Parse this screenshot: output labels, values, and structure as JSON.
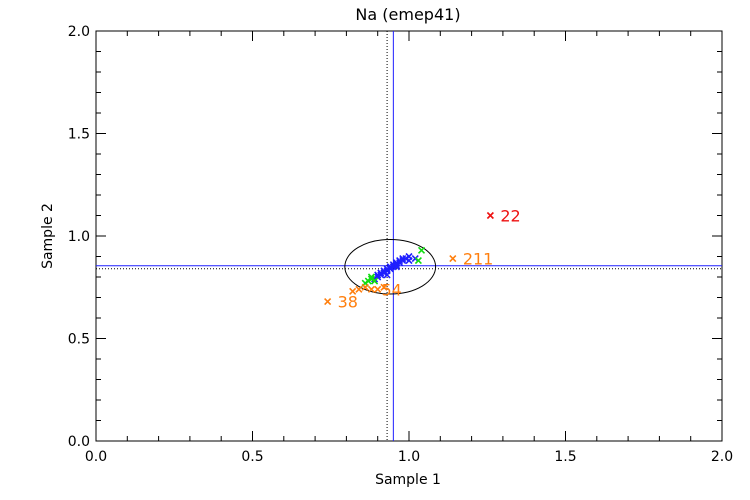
{
  "chart_data": {
    "type": "scatter",
    "title": "Na (emep41)",
    "xlabel": "Sample 1",
    "ylabel": "Sample 2",
    "xlim": [
      0.0,
      2.0
    ],
    "ylim": [
      0.0,
      2.0
    ],
    "x_ticks": [
      "0.0",
      "0.5",
      "1.0",
      "1.5",
      "2.0"
    ],
    "y_ticks": [
      "0.0",
      "0.5",
      "1.0",
      "1.5",
      "2.0"
    ],
    "grid": false,
    "colors": {
      "blue": "#1f1fff",
      "green": "#11dd11",
      "orange": "#ff7f0e",
      "red": "#ee1111",
      "black": "#000000"
    },
    "reference_lines": {
      "mean_x": 0.95,
      "mean_y": 0.855,
      "median_x": 0.93,
      "median_y": 0.84
    },
    "ellipse": {
      "cx": 0.94,
      "cy": 0.85,
      "rx": 0.145,
      "ry": 0.133
    },
    "series": [
      {
        "color": "blue",
        "points": [
          [
            0.89,
            0.79
          ],
          [
            0.9,
            0.8
          ],
          [
            0.91,
            0.81
          ],
          [
            0.91,
            0.82
          ],
          [
            0.92,
            0.82
          ],
          [
            0.92,
            0.83
          ],
          [
            0.93,
            0.83
          ],
          [
            0.93,
            0.84
          ],
          [
            0.94,
            0.84
          ],
          [
            0.94,
            0.85
          ],
          [
            0.95,
            0.85
          ],
          [
            0.95,
            0.86
          ],
          [
            0.96,
            0.86
          ],
          [
            0.96,
            0.87
          ],
          [
            0.97,
            0.87
          ],
          [
            0.97,
            0.88
          ],
          [
            0.98,
            0.88
          ],
          [
            0.98,
            0.89
          ],
          [
            0.99,
            0.89
          ],
          [
            1.0,
            0.9
          ],
          [
            1.0,
            0.88
          ],
          [
            0.96,
            0.85
          ],
          [
            0.93,
            0.81
          ],
          [
            0.9,
            0.81
          ],
          [
            1.02,
            0.89
          ]
        ]
      },
      {
        "color": "green",
        "points": [
          [
            0.86,
            0.77
          ],
          [
            0.87,
            0.78
          ],
          [
            0.88,
            0.79
          ],
          [
            0.88,
            0.8
          ],
          [
            0.89,
            0.78
          ],
          [
            1.03,
            0.88
          ],
          [
            1.04,
            0.93
          ]
        ]
      },
      {
        "color": "orange",
        "points": [
          [
            0.74,
            0.68
          ],
          [
            0.82,
            0.73
          ],
          [
            0.84,
            0.74
          ],
          [
            0.86,
            0.75
          ],
          [
            0.88,
            0.74
          ],
          [
            0.9,
            0.74
          ],
          [
            0.92,
            0.75
          ],
          [
            1.14,
            0.89
          ]
        ],
        "labels": [
          {
            "point": 0,
            "text": "38"
          },
          {
            "point": 4,
            "text": "54"
          },
          {
            "point": 7,
            "text": "211"
          }
        ]
      },
      {
        "color": "red",
        "points": [
          [
            1.26,
            1.1
          ]
        ],
        "labels": [
          {
            "point": 0,
            "text": "22"
          }
        ]
      }
    ]
  }
}
